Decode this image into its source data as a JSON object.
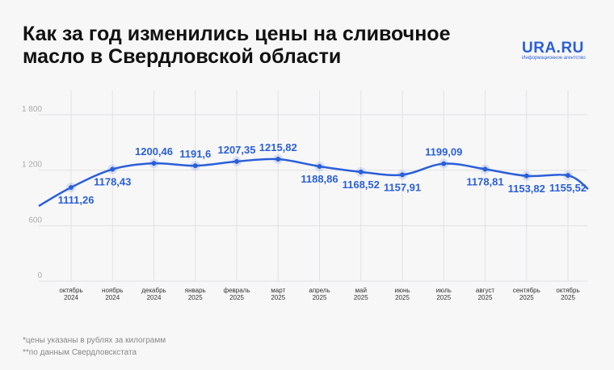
{
  "header": {
    "title_line1": "Как за год изменились цены на сливочное",
    "title_line2": "масло в Свердловской области"
  },
  "logo": {
    "name": "URA.RU",
    "subtitle": "Информационное агентство"
  },
  "colors": {
    "line": "#2b5fd9",
    "label": "#2b5fd9",
    "grid": "#e2e2e4"
  },
  "chart_data": {
    "type": "line",
    "title": "Как за год изменились цены на сливочное масло в Свердловской области",
    "ylim": [
      0,
      1800
    ],
    "yticks": [
      0,
      600,
      1200,
      1800
    ],
    "ytick_labels": [
      "0",
      "600",
      "1 200",
      "1 800"
    ],
    "categories": [
      [
        "октябрь",
        "2024"
      ],
      [
        "ноябрь",
        "2024"
      ],
      [
        "декабрь",
        "2024"
      ],
      [
        "январь",
        "2025"
      ],
      [
        "февраль",
        "2025"
      ],
      [
        "март",
        "2025"
      ],
      [
        "апрель",
        "2025"
      ],
      [
        "май",
        "2025"
      ],
      [
        "июнь",
        "2025"
      ],
      [
        "июль",
        "2025"
      ],
      [
        "август",
        "2025"
      ],
      [
        "сентябрь",
        "2025"
      ],
      [
        "октябрь",
        "2025"
      ]
    ],
    "values": [
      1111.26,
      1178.43,
      1200.46,
      1191.6,
      1207.35,
      1215.82,
      1188.86,
      1168.52,
      1157.91,
      1199.09,
      1178.81,
      1153.82,
      1155.52
    ],
    "value_labels": [
      "1111,26",
      "1178,43",
      "1200,46",
      "1191,6",
      "1207,35",
      "1215,82",
      "1188,86",
      "1168,52",
      "1157,91",
      "1199,09",
      "1178,81",
      "1153,82",
      "1155,52"
    ],
    "grid": true
  },
  "notes": [
    "*цены указаны в рублях за килограмм",
    "**по данным Свердловскстата"
  ]
}
